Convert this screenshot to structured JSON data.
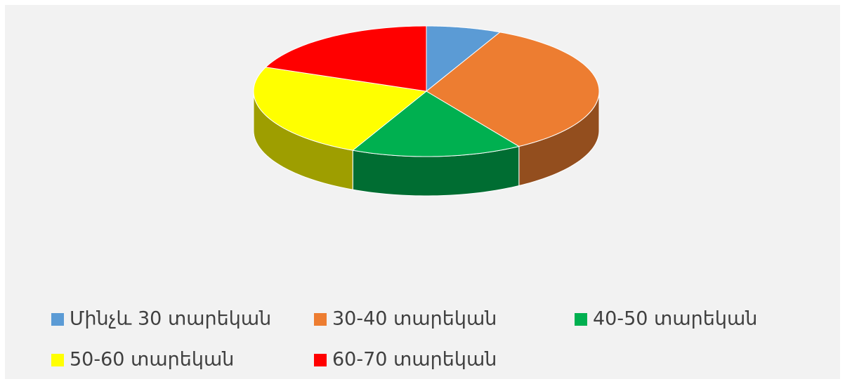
{
  "chart_data": {
    "type": "pie",
    "categories": [
      "Մինչև 30 տարեկան",
      "30-40 տարեկան",
      "40-50 տարեկան",
      "50-60 տարեկան",
      "60-70 տարեկան"
    ],
    "values": [
      7,
      34,
      16,
      24,
      19
    ],
    "colors": [
      "#5b9bd5",
      "#ed7d31",
      "#00b050",
      "#ffff00",
      "#ff0000"
    ],
    "legend": "bottom"
  }
}
